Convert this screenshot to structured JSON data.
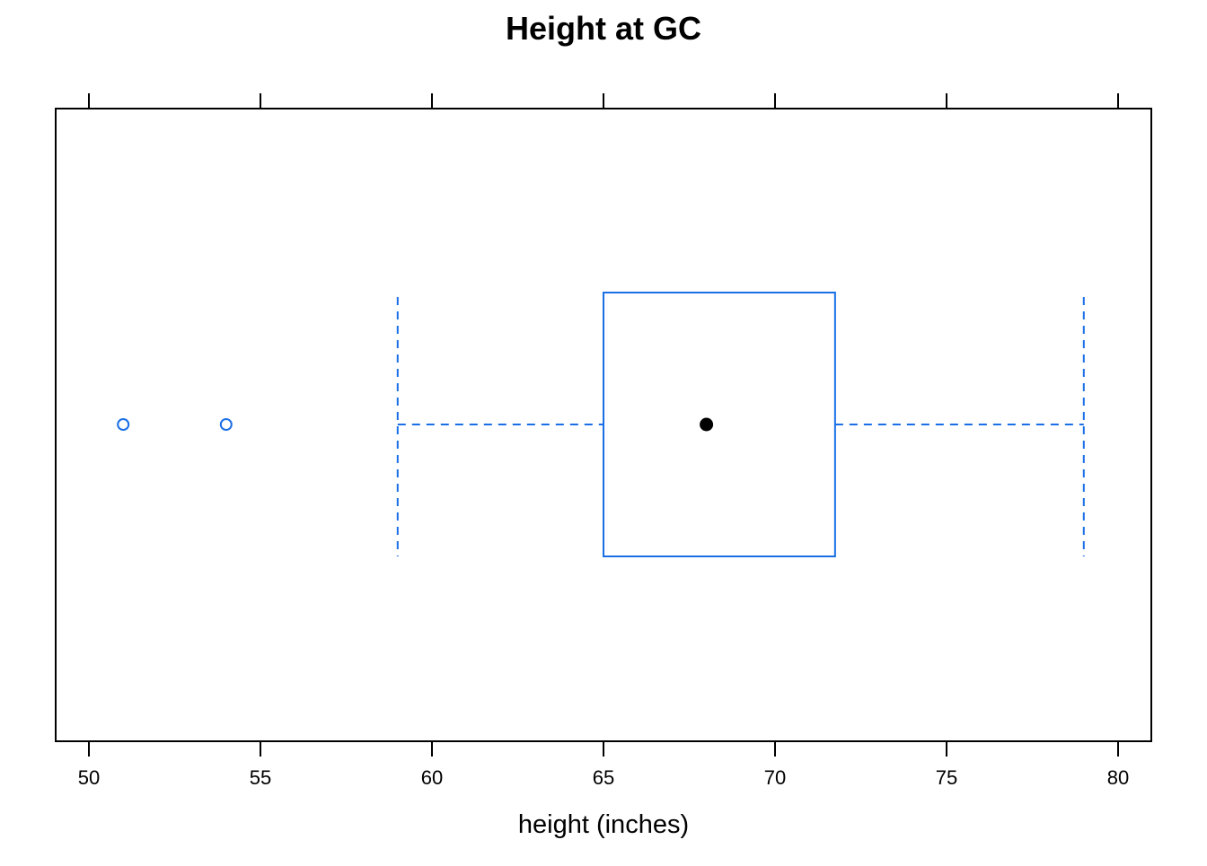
{
  "chart_data": {
    "type": "box",
    "title": "Height at GC",
    "xlabel": "height (inches)",
    "ylabel": "",
    "xlim": [
      49,
      81
    ],
    "xticks": [
      50,
      55,
      60,
      65,
      70,
      75,
      80
    ],
    "tick_labels": [
      "50",
      "55",
      "60",
      "65",
      "70",
      "75",
      "80"
    ],
    "ticks_on_top": true,
    "orientation": "horizontal",
    "grid": false,
    "box": {
      "whisker_low": 59,
      "q1": 65,
      "median": 68,
      "q3": 71.75,
      "whisker_high": 79
    },
    "outliers": [
      51,
      54
    ]
  },
  "colors": {
    "box": "#1a6ee6",
    "median_dot": "#000000",
    "frame": "#000000",
    "background": "#ffffff"
  }
}
